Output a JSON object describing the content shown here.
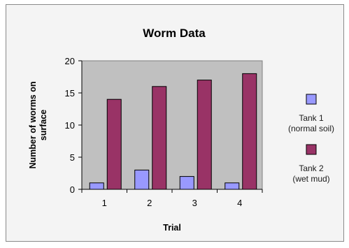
{
  "chart_data": {
    "type": "bar",
    "title": "Worm Data",
    "xlabel": "Trial",
    "ylabel_lines": [
      "Number of worms on",
      "surface"
    ],
    "categories": [
      "1",
      "2",
      "3",
      "4"
    ],
    "series": [
      {
        "name_lines": [
          "Tank 1",
          "(normal soil)"
        ],
        "values": [
          1,
          3,
          2,
          1
        ],
        "color": "#9999ff"
      },
      {
        "name_lines": [
          "Tank 2",
          "(wet mud)"
        ],
        "values": [
          14,
          16,
          17,
          18
        ],
        "color": "#993366"
      }
    ],
    "ylim": [
      0,
      20
    ],
    "yticks": [
      "0",
      "5",
      "10",
      "15",
      "20"
    ],
    "ytick_values": [
      0,
      5,
      10,
      15,
      20
    ],
    "grid": false,
    "legend_position": "right",
    "plot_background": "#c0c0c0",
    "chart_background": "#f4f4f4"
  }
}
